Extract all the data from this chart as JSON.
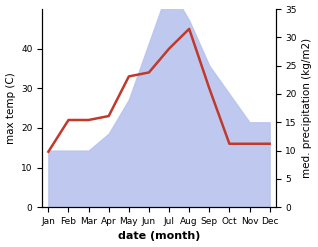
{
  "months": [
    "Jan",
    "Feb",
    "Mar",
    "Apr",
    "May",
    "Jun",
    "Jul",
    "Aug",
    "Sep",
    "Oct",
    "Nov",
    "Dec"
  ],
  "temperature": [
    14,
    22,
    22,
    23,
    33,
    34,
    40,
    45,
    30,
    16,
    16,
    16
  ],
  "precipitation_display": [
    10,
    10,
    10,
    13,
    19,
    29,
    39,
    33,
    25,
    20,
    15,
    15
  ],
  "temp_color": "#c0392b",
  "precip_color": "#b8c4ee",
  "left_ylabel": "max temp (C)",
  "right_ylabel": "med. precipitation (kg/m2)",
  "xlabel": "date (month)",
  "left_ylim": [
    0,
    50
  ],
  "right_ylim": [
    0,
    35
  ],
  "left_yticks": [
    0,
    10,
    20,
    30,
    40
  ],
  "right_yticks": [
    0,
    5,
    10,
    15,
    20,
    25,
    30,
    35
  ],
  "background_color": "#ffffff",
  "label_fontsize": 7.5,
  "tick_fontsize": 6.5,
  "xlabel_fontsize": 8,
  "linewidth": 1.8
}
